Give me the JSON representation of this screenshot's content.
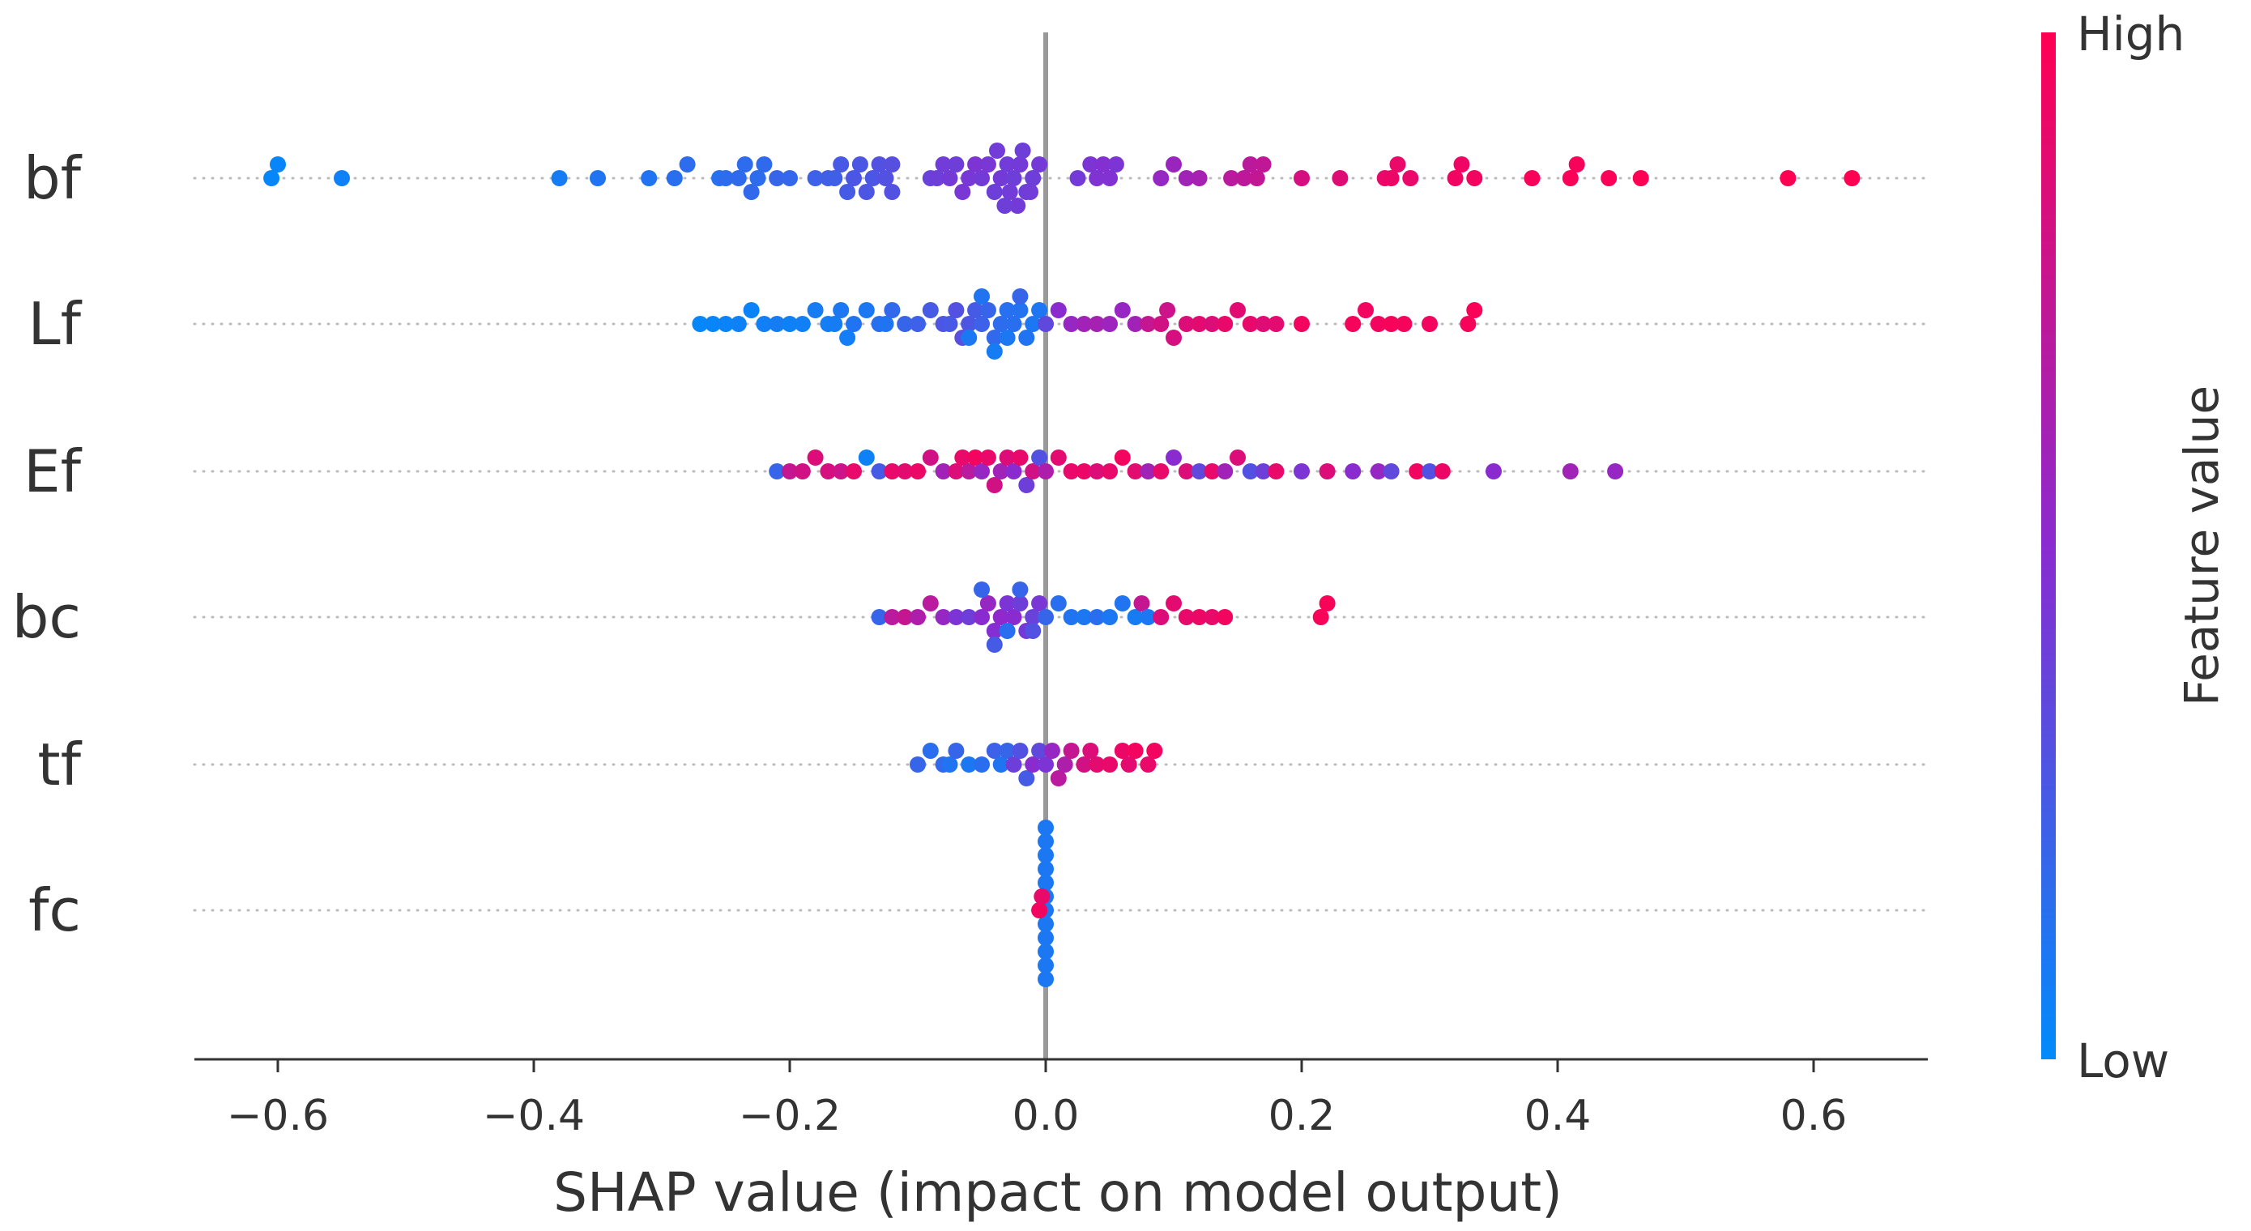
{
  "chart_data": {
    "type": "scatter",
    "subtype": "shap-beeswarm",
    "xlabel": "SHAP value (impact on model output)",
    "xlim": [
      -0.67,
      0.69
    ],
    "xticks": [
      -0.6,
      -0.4,
      -0.2,
      0.0,
      0.2,
      0.4,
      0.6
    ],
    "xtick_labels": [
      "−0.6",
      "−0.4",
      "−0.2",
      "0.0",
      "0.2",
      "0.4",
      "0.6"
    ],
    "colorbar": {
      "title": "Feature value",
      "high_label": "High",
      "low_label": "Low",
      "high_color": "#ff0052",
      "mid_color": "#8a2bd0",
      "low_color": "#008bfb"
    },
    "features": [
      {
        "name": "bf",
        "points": [
          [
            -0.605,
            0.02
          ],
          [
            -0.6,
            0.03
          ],
          [
            -0.55,
            0.05
          ],
          [
            -0.38,
            0.08
          ],
          [
            -0.35,
            0.12
          ],
          [
            -0.31,
            0.12
          ],
          [
            -0.29,
            0.15
          ],
          [
            -0.28,
            0.16
          ],
          [
            -0.255,
            0.14
          ],
          [
            -0.25,
            0.16
          ],
          [
            -0.24,
            0.17
          ],
          [
            -0.235,
            0.16
          ],
          [
            -0.23,
            0.18
          ],
          [
            -0.225,
            0.16
          ],
          [
            -0.22,
            0.17
          ],
          [
            -0.21,
            0.2
          ],
          [
            -0.2,
            0.19
          ],
          [
            -0.18,
            0.22
          ],
          [
            -0.17,
            0.24
          ],
          [
            -0.165,
            0.23
          ],
          [
            -0.16,
            0.26
          ],
          [
            -0.155,
            0.25
          ],
          [
            -0.15,
            0.27
          ],
          [
            -0.145,
            0.27
          ],
          [
            -0.14,
            0.28
          ],
          [
            -0.135,
            0.27
          ],
          [
            -0.13,
            0.3
          ],
          [
            -0.125,
            0.3
          ],
          [
            -0.12,
            0.31
          ],
          [
            -0.12,
            0.3
          ],
          [
            -0.09,
            0.38
          ],
          [
            -0.085,
            0.4
          ],
          [
            -0.08,
            0.41
          ],
          [
            -0.075,
            0.42
          ],
          [
            -0.07,
            0.4
          ],
          [
            -0.065,
            0.44
          ],
          [
            -0.06,
            0.43
          ],
          [
            -0.055,
            0.45
          ],
          [
            -0.05,
            0.42
          ],
          [
            -0.045,
            0.44
          ],
          [
            -0.04,
            0.4
          ],
          [
            -0.035,
            0.42
          ],
          [
            -0.03,
            0.41
          ],
          [
            -0.025,
            0.4
          ],
          [
            -0.02,
            0.42
          ],
          [
            -0.015,
            0.4
          ],
          [
            -0.01,
            0.4
          ],
          [
            -0.005,
            0.42
          ],
          [
            -0.028,
            0.41
          ],
          [
            -0.018,
            0.4
          ],
          [
            -0.038,
            0.41
          ],
          [
            -0.012,
            0.41
          ],
          [
            -0.022,
            0.42
          ],
          [
            -0.032,
            0.4
          ],
          [
            0.025,
            0.42
          ],
          [
            0.035,
            0.45
          ],
          [
            0.04,
            0.46
          ],
          [
            0.045,
            0.48
          ],
          [
            0.05,
            0.47
          ],
          [
            0.055,
            0.45
          ],
          [
            0.09,
            0.55
          ],
          [
            0.1,
            0.57
          ],
          [
            0.11,
            0.6
          ],
          [
            0.12,
            0.62
          ],
          [
            0.145,
            0.7
          ],
          [
            0.155,
            0.72
          ],
          [
            0.16,
            0.71
          ],
          [
            0.165,
            0.74
          ],
          [
            0.17,
            0.73
          ],
          [
            0.2,
            0.82
          ],
          [
            0.23,
            0.86
          ],
          [
            0.265,
            0.9
          ],
          [
            0.27,
            0.92
          ],
          [
            0.275,
            0.91
          ],
          [
            0.285,
            0.9
          ],
          [
            0.32,
            0.94
          ],
          [
            0.325,
            0.93
          ],
          [
            0.335,
            0.95
          ],
          [
            0.38,
            0.97
          ],
          [
            0.41,
            0.98
          ],
          [
            0.415,
            0.97
          ],
          [
            0.44,
            0.98
          ],
          [
            0.465,
            0.99
          ],
          [
            0.58,
            1.0
          ],
          [
            0.63,
            1.0
          ]
        ]
      },
      {
        "name": "Lf",
        "points": [
          [
            -0.27,
            0.02
          ],
          [
            -0.26,
            0.03
          ],
          [
            -0.25,
            0.04
          ],
          [
            -0.24,
            0.05
          ],
          [
            -0.23,
            0.04
          ],
          [
            -0.22,
            0.06
          ],
          [
            -0.21,
            0.08
          ],
          [
            -0.2,
            0.05
          ],
          [
            -0.19,
            0.06
          ],
          [
            -0.18,
            0.08
          ],
          [
            -0.17,
            0.07
          ],
          [
            -0.165,
            0.08
          ],
          [
            -0.16,
            0.1
          ],
          [
            -0.155,
            0.07
          ],
          [
            -0.15,
            0.12
          ],
          [
            -0.14,
            0.1
          ],
          [
            -0.13,
            0.15
          ],
          [
            -0.125,
            0.12
          ],
          [
            -0.12,
            0.18
          ],
          [
            -0.11,
            0.2
          ],
          [
            -0.1,
            0.22
          ],
          [
            -0.09,
            0.25
          ],
          [
            -0.08,
            0.28
          ],
          [
            -0.075,
            0.26
          ],
          [
            -0.07,
            0.3
          ],
          [
            -0.065,
            0.32
          ],
          [
            -0.06,
            0.28
          ],
          [
            -0.055,
            0.25
          ],
          [
            -0.05,
            0.22
          ],
          [
            -0.045,
            0.2
          ],
          [
            -0.04,
            0.18
          ],
          [
            -0.035,
            0.16
          ],
          [
            -0.03,
            0.14
          ],
          [
            -0.025,
            0.15
          ],
          [
            -0.02,
            0.13
          ],
          [
            -0.015,
            0.12
          ],
          [
            -0.01,
            0.1
          ],
          [
            -0.005,
            0.11
          ],
          [
            -0.06,
            0.1
          ],
          [
            -0.05,
            0.12
          ],
          [
            -0.04,
            0.08
          ],
          [
            -0.03,
            0.1
          ],
          [
            -0.02,
            0.2
          ],
          [
            0.0,
            0.35
          ],
          [
            0.01,
            0.5
          ],
          [
            0.02,
            0.55
          ],
          [
            0.03,
            0.6
          ],
          [
            0.04,
            0.62
          ],
          [
            0.05,
            0.58
          ],
          [
            0.06,
            0.55
          ],
          [
            0.07,
            0.6
          ],
          [
            0.08,
            0.75
          ],
          [
            0.09,
            0.8
          ],
          [
            0.095,
            0.78
          ],
          [
            0.1,
            0.82
          ],
          [
            0.11,
            0.85
          ],
          [
            0.12,
            0.88
          ],
          [
            0.13,
            0.85
          ],
          [
            0.14,
            0.9
          ],
          [
            0.15,
            0.87
          ],
          [
            0.16,
            0.9
          ],
          [
            0.17,
            0.86
          ],
          [
            0.18,
            0.88
          ],
          [
            0.2,
            0.95
          ],
          [
            0.24,
            0.96
          ],
          [
            0.25,
            0.94
          ],
          [
            0.26,
            0.95
          ],
          [
            0.27,
            0.97
          ],
          [
            0.28,
            0.96
          ],
          [
            0.3,
            0.95
          ],
          [
            0.33,
            0.97
          ],
          [
            0.335,
            0.98
          ]
        ]
      },
      {
        "name": "Ef",
        "points": [
          [
            -0.21,
            0.2
          ],
          [
            -0.2,
            0.75
          ],
          [
            -0.19,
            0.8
          ],
          [
            -0.18,
            0.85
          ],
          [
            -0.17,
            0.82
          ],
          [
            -0.16,
            0.78
          ],
          [
            -0.15,
            0.9
          ],
          [
            -0.14,
            0.05
          ],
          [
            -0.13,
            0.25
          ],
          [
            -0.12,
            0.9
          ],
          [
            -0.11,
            0.88
          ],
          [
            -0.1,
            0.92
          ],
          [
            -0.09,
            0.8
          ],
          [
            -0.08,
            0.6
          ],
          [
            -0.07,
            0.85
          ],
          [
            -0.065,
            0.9
          ],
          [
            -0.06,
            0.7
          ],
          [
            -0.055,
            0.95
          ],
          [
            -0.05,
            0.55
          ],
          [
            -0.045,
            0.9
          ],
          [
            -0.04,
            0.8
          ],
          [
            -0.035,
            0.6
          ],
          [
            -0.03,
            0.85
          ],
          [
            -0.025,
            0.5
          ],
          [
            -0.02,
            0.9
          ],
          [
            -0.015,
            0.4
          ],
          [
            -0.01,
            0.8
          ],
          [
            -0.005,
            0.3
          ],
          [
            0.0,
            0.65
          ],
          [
            0.01,
            0.88
          ],
          [
            0.02,
            0.9
          ],
          [
            0.03,
            0.92
          ],
          [
            0.04,
            0.85
          ],
          [
            0.05,
            0.9
          ],
          [
            0.06,
            0.95
          ],
          [
            0.07,
            0.88
          ],
          [
            0.08,
            0.6
          ],
          [
            0.09,
            0.9
          ],
          [
            0.1,
            0.5
          ],
          [
            0.11,
            0.85
          ],
          [
            0.12,
            0.35
          ],
          [
            0.13,
            0.9
          ],
          [
            0.14,
            0.6
          ],
          [
            0.15,
            0.85
          ],
          [
            0.16,
            0.3
          ],
          [
            0.17,
            0.4
          ],
          [
            0.18,
            0.9
          ],
          [
            0.2,
            0.45
          ],
          [
            0.22,
            0.85
          ],
          [
            0.24,
            0.5
          ],
          [
            0.26,
            0.55
          ],
          [
            0.27,
            0.35
          ],
          [
            0.29,
            0.95
          ],
          [
            0.3,
            0.3
          ],
          [
            0.31,
            0.92
          ],
          [
            0.35,
            0.5
          ],
          [
            0.41,
            0.6
          ],
          [
            0.445,
            0.55
          ]
        ]
      },
      {
        "name": "bc",
        "points": [
          [
            -0.13,
            0.2
          ],
          [
            -0.12,
            0.7
          ],
          [
            -0.11,
            0.75
          ],
          [
            -0.1,
            0.65
          ],
          [
            -0.09,
            0.7
          ],
          [
            -0.08,
            0.55
          ],
          [
            -0.07,
            0.45
          ],
          [
            -0.06,
            0.4
          ],
          [
            -0.05,
            0.5
          ],
          [
            -0.045,
            0.55
          ],
          [
            -0.04,
            0.48
          ],
          [
            -0.035,
            0.52
          ],
          [
            -0.03,
            0.45
          ],
          [
            -0.025,
            0.5
          ],
          [
            -0.02,
            0.4
          ],
          [
            -0.015,
            0.42
          ],
          [
            -0.01,
            0.38
          ],
          [
            -0.005,
            0.44
          ],
          [
            -0.05,
            0.2
          ],
          [
            -0.04,
            0.25
          ],
          [
            -0.03,
            0.15
          ],
          [
            -0.02,
            0.2
          ],
          [
            -0.01,
            0.3
          ],
          [
            0.0,
            0.2
          ],
          [
            0.01,
            0.15
          ],
          [
            0.02,
            0.12
          ],
          [
            0.03,
            0.1
          ],
          [
            0.04,
            0.15
          ],
          [
            0.05,
            0.1
          ],
          [
            0.06,
            0.12
          ],
          [
            0.07,
            0.08
          ],
          [
            0.075,
            0.75
          ],
          [
            0.08,
            0.1
          ],
          [
            0.09,
            0.85
          ],
          [
            0.1,
            0.88
          ],
          [
            0.11,
            0.9
          ],
          [
            0.12,
            0.92
          ],
          [
            0.13,
            0.9
          ],
          [
            0.14,
            0.95
          ],
          [
            0.215,
            0.97
          ],
          [
            0.22,
            0.98
          ]
        ]
      },
      {
        "name": "tf",
        "points": [
          [
            -0.1,
            0.2
          ],
          [
            -0.09,
            0.15
          ],
          [
            -0.08,
            0.18
          ],
          [
            -0.075,
            0.12
          ],
          [
            -0.07,
            0.2
          ],
          [
            -0.06,
            0.1
          ],
          [
            -0.05,
            0.15
          ],
          [
            -0.04,
            0.22
          ],
          [
            -0.035,
            0.12
          ],
          [
            -0.03,
            0.2
          ],
          [
            -0.025,
            0.4
          ],
          [
            -0.02,
            0.3
          ],
          [
            -0.015,
            0.25
          ],
          [
            -0.01,
            0.5
          ],
          [
            -0.005,
            0.35
          ],
          [
            0.0,
            0.45
          ],
          [
            0.005,
            0.55
          ],
          [
            0.01,
            0.7
          ],
          [
            0.015,
            0.65
          ],
          [
            0.02,
            0.75
          ],
          [
            0.03,
            0.8
          ],
          [
            0.035,
            0.85
          ],
          [
            0.04,
            0.88
          ],
          [
            0.05,
            0.9
          ],
          [
            0.06,
            0.92
          ],
          [
            0.065,
            0.88
          ],
          [
            0.07,
            0.95
          ],
          [
            0.08,
            0.9
          ],
          [
            0.085,
            0.95
          ]
        ]
      },
      {
        "name": "fc",
        "points": [
          [
            0.0,
            0.1
          ],
          [
            0.0,
            0.1
          ],
          [
            0.0,
            0.1
          ],
          [
            0.0,
            0.1
          ],
          [
            0.0,
            0.1
          ],
          [
            0.0,
            0.1
          ],
          [
            0.0,
            0.1
          ],
          [
            0.0,
            0.1
          ],
          [
            0.0,
            0.1
          ],
          [
            0.0,
            0.1
          ],
          [
            0.0,
            0.1
          ],
          [
            0.0,
            0.1
          ],
          [
            -0.005,
            0.95
          ],
          [
            -0.003,
            0.9
          ]
        ]
      }
    ]
  }
}
